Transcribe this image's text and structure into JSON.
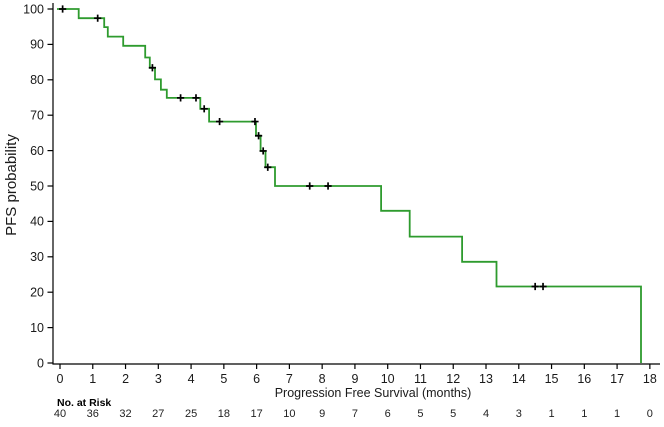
{
  "chart_data": {
    "type": "line",
    "subtype": "kaplan-meier-step-curve",
    "title": "",
    "xlabel": "Progression Free Survival  (months)",
    "ylabel": "PFS probability",
    "xlim": [
      0,
      18
    ],
    "ylim": [
      0,
      100
    ],
    "x_ticks": [
      0,
      1,
      2,
      3,
      4,
      5,
      6,
      7,
      8,
      9,
      10,
      11,
      12,
      13,
      14,
      15,
      16,
      17,
      18
    ],
    "y_ticks": [
      0,
      10,
      20,
      30,
      40,
      50,
      60,
      70,
      80,
      90,
      100
    ],
    "grid": false,
    "legend": false,
    "axis_color": "#000000",
    "line_color": "#2e9b2e",
    "censor_color": "#000000",
    "series": [
      {
        "name": "PFS",
        "start": [
          0,
          100
        ],
        "drops": [
          [
            0.57,
            97.4
          ],
          [
            1.35,
            94.9
          ],
          [
            1.46,
            92.2
          ],
          [
            1.93,
            89.6
          ],
          [
            2.6,
            86.3
          ],
          [
            2.74,
            83.4
          ],
          [
            2.9,
            80.1
          ],
          [
            3.08,
            77.2
          ],
          [
            3.26,
            74.9
          ],
          [
            4.28,
            71.8
          ],
          [
            4.55,
            68.2
          ],
          [
            5.98,
            64.2
          ],
          [
            6.12,
            59.9
          ],
          [
            6.27,
            55.3
          ],
          [
            6.56,
            50.0
          ],
          [
            9.8,
            43.0
          ],
          [
            10.67,
            35.7
          ],
          [
            12.27,
            28.6
          ],
          [
            13.32,
            21.6
          ],
          [
            17.73,
            0
          ]
        ],
        "censors": [
          [
            0.08,
            100
          ],
          [
            1.15,
            97.4
          ],
          [
            2.82,
            83.4
          ],
          [
            3.68,
            74.9
          ],
          [
            4.15,
            74.9
          ],
          [
            4.4,
            71.8
          ],
          [
            4.87,
            68.2
          ],
          [
            5.95,
            68.2
          ],
          [
            6.06,
            64.2
          ],
          [
            6.2,
            59.9
          ],
          [
            6.34,
            55.3
          ],
          [
            7.62,
            50.0
          ],
          [
            8.18,
            50.0
          ],
          [
            14.5,
            21.6
          ],
          [
            14.74,
            21.6
          ]
        ]
      }
    ],
    "risk_table": {
      "label": "No. at Risk",
      "times": [
        0,
        1,
        2,
        3,
        4,
        5,
        6,
        7,
        8,
        9,
        10,
        11,
        12,
        13,
        14,
        15,
        16,
        17,
        18
      ],
      "counts": [
        40,
        36,
        32,
        27,
        25,
        18,
        17,
        10,
        9,
        7,
        6,
        5,
        5,
        4,
        3,
        1,
        1,
        1,
        0
      ]
    }
  }
}
